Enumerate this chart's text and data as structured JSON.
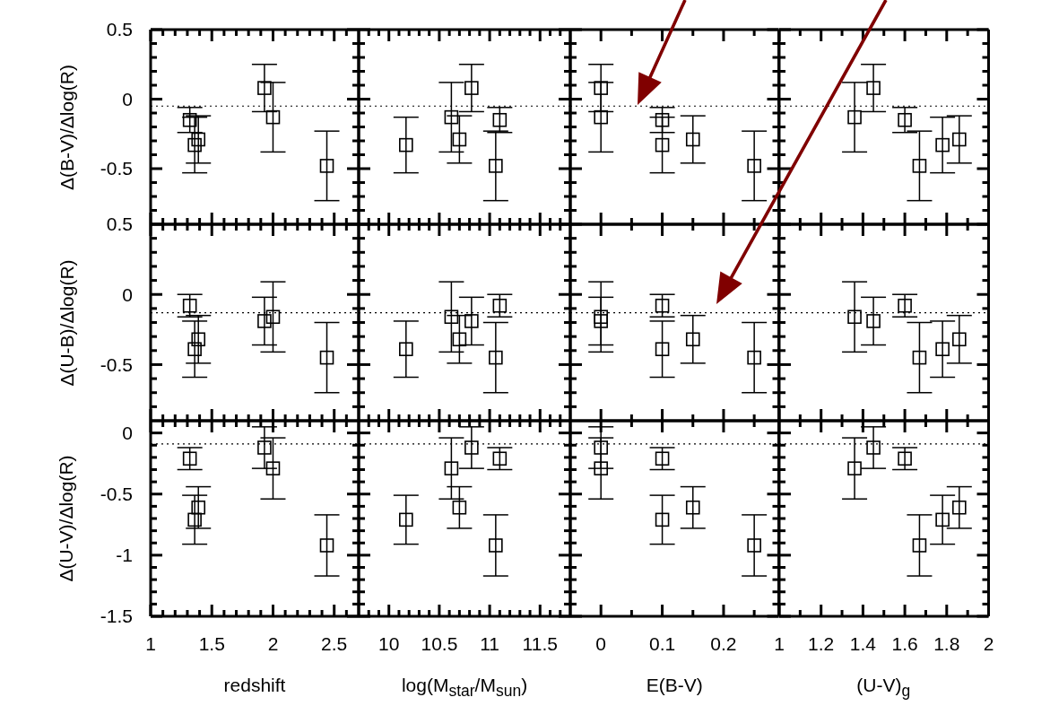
{
  "chart_data": [
    {
      "type": "scatter",
      "ylabel": "Δ(B-V)/Δlog(R)",
      "tick_labels": "y",
      "marker": "square",
      "color": "#000000",
      "x": [
        1.32,
        1.36,
        1.39,
        1.93,
        2.0,
        2.44
      ],
      "values": [
        -0.15,
        -0.33,
        -0.29,
        0.08,
        -0.13,
        -0.48
      ],
      "errors": [
        0.09,
        0.2,
        0.17,
        0.17,
        0.25,
        0.25
      ],
      "xlim": [
        1,
        2.7
      ],
      "ylim": [
        -0.9,
        0.5
      ],
      "xticks": [
        1,
        {
          "value": 1.1,
          "label": null
        },
        {
          "value": 1.2,
          "label": null
        },
        {
          "value": 1.3,
          "label": null
        },
        {
          "value": 1.4,
          "label": null
        },
        1.5,
        {
          "value": 1.6,
          "label": null
        },
        {
          "value": 1.7,
          "label": null
        },
        {
          "value": 1.8,
          "label": null
        },
        {
          "value": 1.9,
          "label": null
        },
        2,
        {
          "value": 2.1,
          "label": null
        },
        {
          "value": 2.2,
          "label": null
        },
        {
          "value": 2.3,
          "label": null
        },
        {
          "value": 2.4,
          "label": null
        },
        2.5,
        {
          "value": 2.6,
          "label": null
        }
      ],
      "yticks": [
        {
          "value": -0.8,
          "label": null
        },
        {
          "value": -0.7,
          "label": null
        },
        {
          "value": -0.6,
          "label": null
        },
        -0.5,
        {
          "value": -0.4,
          "label": null
        },
        {
          "value": -0.3,
          "label": null
        },
        {
          "value": -0.2,
          "label": null
        },
        {
          "value": -0.1,
          "label": null
        },
        0,
        {
          "value": 0.1,
          "label": null
        },
        {
          "value": 0.2,
          "label": null
        },
        {
          "value": 0.3,
          "label": null
        },
        {
          "value": 0.4,
          "label": null
        },
        0.5
      ],
      "ref_lines": [
        {
          "axis": "y",
          "value": -0.05,
          "line_style": "dotted",
          "color": "#000000"
        }
      ]
    },
    {
      "type": "scatter",
      "tick_labels": false,
      "marker": "square",
      "color": "#000000",
      "x": [
        11.1,
        10.17,
        10.7,
        10.82,
        10.62,
        11.06
      ],
      "values": [
        -0.15,
        -0.33,
        -0.29,
        0.08,
        -0.13,
        -0.48
      ],
      "errors": [
        0.09,
        0.2,
        0.17,
        0.17,
        0.25,
        0.25
      ],
      "xlim": [
        9.7,
        11.8
      ],
      "ylim": [
        -0.9,
        0.5
      ],
      "xticks": [
        {
          "value": 9.8,
          "label": null
        },
        {
          "value": 9.9,
          "label": null
        },
        10,
        {
          "value": 10.1,
          "label": null
        },
        {
          "value": 10.2,
          "label": null
        },
        {
          "value": 10.3,
          "label": null
        },
        {
          "value": 10.4,
          "label": null
        },
        10.5,
        {
          "value": 10.6,
          "label": null
        },
        {
          "value": 10.7,
          "label": null
        },
        {
          "value": 10.8,
          "label": null
        },
        {
          "value": 10.9,
          "label": null
        },
        11,
        {
          "value": 11.1,
          "label": null
        },
        {
          "value": 11.2,
          "label": null
        },
        {
          "value": 11.3,
          "label": null
        },
        {
          "value": 11.4,
          "label": null
        },
        11.5,
        {
          "value": 11.6,
          "label": null
        },
        {
          "value": 11.7,
          "label": null
        }
      ],
      "yticks": [
        {
          "value": -0.8,
          "label": null
        },
        {
          "value": -0.7,
          "label": null
        },
        {
          "value": -0.6,
          "label": null
        },
        -0.5,
        {
          "value": -0.4,
          "label": null
        },
        {
          "value": -0.3,
          "label": null
        },
        {
          "value": -0.2,
          "label": null
        },
        {
          "value": -0.1,
          "label": null
        },
        0,
        {
          "value": 0.1,
          "label": null
        },
        {
          "value": 0.2,
          "label": null
        },
        {
          "value": 0.3,
          "label": null
        },
        {
          "value": 0.4,
          "label": null
        },
        0.5
      ],
      "ref_lines": [
        {
          "axis": "y",
          "value": -0.05,
          "line_style": "dotted",
          "color": "#000000"
        }
      ]
    },
    {
      "type": "scatter",
      "tick_labels": false,
      "marker": "square",
      "color": "#000000",
      "x": [
        0.1,
        0.1,
        0.15,
        0,
        0,
        0.25
      ],
      "values": [
        -0.15,
        -0.33,
        -0.29,
        0.08,
        -0.13,
        -0.48
      ],
      "errors": [
        0.09,
        0.2,
        0.17,
        0.17,
        0.25,
        0.25
      ],
      "xlim": [
        -0.05,
        0.29
      ],
      "ylim": [
        -0.9,
        0.5
      ],
      "xticks": [
        0,
        {
          "value": 0.05,
          "label": null
        },
        0.1,
        {
          "value": 0.15,
          "label": null
        },
        0.2,
        {
          "value": 0.25,
          "label": null
        }
      ],
      "yticks": [
        {
          "value": -0.8,
          "label": null
        },
        {
          "value": -0.7,
          "label": null
        },
        {
          "value": -0.6,
          "label": null
        },
        -0.5,
        {
          "value": -0.4,
          "label": null
        },
        {
          "value": -0.3,
          "label": null
        },
        {
          "value": -0.2,
          "label": null
        },
        {
          "value": -0.1,
          "label": null
        },
        0,
        {
          "value": 0.1,
          "label": null
        },
        {
          "value": 0.2,
          "label": null
        },
        {
          "value": 0.3,
          "label": null
        },
        {
          "value": 0.4,
          "label": null
        },
        0.5
      ],
      "ref_lines": [
        {
          "axis": "y",
          "value": -0.05,
          "line_style": "dotted",
          "color": "#000000"
        }
      ]
    },
    {
      "type": "scatter",
      "tick_labels": false,
      "marker": "square",
      "color": "#000000",
      "x": [
        1.6,
        1.78,
        1.86,
        1.45,
        1.36,
        1.67
      ],
      "values": [
        -0.15,
        -0.33,
        -0.29,
        0.08,
        -0.13,
        -0.48
      ],
      "errors": [
        0.09,
        0.2,
        0.17,
        0.17,
        0.25,
        0.25
      ],
      "xlim": [
        1,
        2
      ],
      "ylim": [
        -0.9,
        0.5
      ],
      "xticks": [
        1,
        {
          "value": 1.1,
          "label": null
        },
        1.2,
        {
          "value": 1.3,
          "label": null
        },
        1.4,
        {
          "value": 1.5,
          "label": null
        },
        1.6,
        {
          "value": 1.7,
          "label": null
        },
        1.8,
        {
          "value": 1.9,
          "label": null
        },
        2
      ],
      "yticks": [
        {
          "value": -0.8,
          "label": null
        },
        {
          "value": -0.7,
          "label": null
        },
        {
          "value": -0.6,
          "label": null
        },
        -0.5,
        {
          "value": -0.4,
          "label": null
        },
        {
          "value": -0.3,
          "label": null
        },
        {
          "value": -0.2,
          "label": null
        },
        {
          "value": -0.1,
          "label": null
        },
        0,
        {
          "value": 0.1,
          "label": null
        },
        {
          "value": 0.2,
          "label": null
        },
        {
          "value": 0.3,
          "label": null
        },
        {
          "value": 0.4,
          "label": null
        },
        0.5
      ],
      "ref_lines": [
        {
          "axis": "y",
          "value": -0.05,
          "line_style": "dotted",
          "color": "#000000"
        }
      ]
    },
    {
      "type": "scatter",
      "ylabel": "Δ(U-B)/Δlog(R)",
      "tick_labels": "y",
      "marker": "square",
      "color": "#000000",
      "x": [
        1.32,
        1.36,
        1.39,
        1.93,
        2.0,
        2.44
      ],
      "values": [
        -0.08,
        -0.39,
        -0.32,
        -0.19,
        -0.16,
        -0.45
      ],
      "errors": [
        0.08,
        0.2,
        0.17,
        0.17,
        0.25,
        0.25
      ],
      "xlim": [
        1,
        2.7
      ],
      "ylim": [
        -0.9,
        0.5
      ],
      "xticks": [
        1,
        {
          "value": 1.1,
          "label": null
        },
        {
          "value": 1.2,
          "label": null
        },
        {
          "value": 1.3,
          "label": null
        },
        {
          "value": 1.4,
          "label": null
        },
        1.5,
        {
          "value": 1.6,
          "label": null
        },
        {
          "value": 1.7,
          "label": null
        },
        {
          "value": 1.8,
          "label": null
        },
        {
          "value": 1.9,
          "label": null
        },
        2,
        {
          "value": 2.1,
          "label": null
        },
        {
          "value": 2.2,
          "label": null
        },
        {
          "value": 2.3,
          "label": null
        },
        {
          "value": 2.4,
          "label": null
        },
        2.5,
        {
          "value": 2.6,
          "label": null
        }
      ],
      "yticks": [
        {
          "value": -0.8,
          "label": null
        },
        {
          "value": -0.7,
          "label": null
        },
        {
          "value": -0.6,
          "label": null
        },
        -0.5,
        {
          "value": -0.4,
          "label": null
        },
        {
          "value": -0.3,
          "label": null
        },
        {
          "value": -0.2,
          "label": null
        },
        {
          "value": -0.1,
          "label": null
        },
        0,
        {
          "value": 0.1,
          "label": null
        },
        {
          "value": 0.2,
          "label": null
        },
        {
          "value": 0.3,
          "label": null
        },
        {
          "value": 0.4,
          "label": null
        },
        0.5
      ],
      "ref_lines": [
        {
          "axis": "y",
          "value": -0.13,
          "line_style": "dotted",
          "color": "#000000"
        }
      ]
    },
    {
      "type": "scatter",
      "tick_labels": false,
      "marker": "square",
      "color": "#000000",
      "x": [
        11.1,
        10.17,
        10.7,
        10.82,
        10.62,
        11.06
      ],
      "values": [
        -0.08,
        -0.39,
        -0.32,
        -0.19,
        -0.16,
        -0.45
      ],
      "errors": [
        0.08,
        0.2,
        0.17,
        0.17,
        0.25,
        0.25
      ],
      "xlim": [
        9.7,
        11.8
      ],
      "ylim": [
        -0.9,
        0.5
      ],
      "xticks": [
        {
          "value": 9.8,
          "label": null
        },
        {
          "value": 9.9,
          "label": null
        },
        10,
        {
          "value": 10.1,
          "label": null
        },
        {
          "value": 10.2,
          "label": null
        },
        {
          "value": 10.3,
          "label": null
        },
        {
          "value": 10.4,
          "label": null
        },
        10.5,
        {
          "value": 10.6,
          "label": null
        },
        {
          "value": 10.7,
          "label": null
        },
        {
          "value": 10.8,
          "label": null
        },
        {
          "value": 10.9,
          "label": null
        },
        11,
        {
          "value": 11.1,
          "label": null
        },
        {
          "value": 11.2,
          "label": null
        },
        {
          "value": 11.3,
          "label": null
        },
        {
          "value": 11.4,
          "label": null
        },
        11.5,
        {
          "value": 11.6,
          "label": null
        },
        {
          "value": 11.7,
          "label": null
        }
      ],
      "yticks": [
        {
          "value": -0.8,
          "label": null
        },
        {
          "value": -0.7,
          "label": null
        },
        {
          "value": -0.6,
          "label": null
        },
        -0.5,
        {
          "value": -0.4,
          "label": null
        },
        {
          "value": -0.3,
          "label": null
        },
        {
          "value": -0.2,
          "label": null
        },
        {
          "value": -0.1,
          "label": null
        },
        0,
        {
          "value": 0.1,
          "label": null
        },
        {
          "value": 0.2,
          "label": null
        },
        {
          "value": 0.3,
          "label": null
        },
        {
          "value": 0.4,
          "label": null
        },
        0.5
      ],
      "ref_lines": [
        {
          "axis": "y",
          "value": -0.13,
          "line_style": "dotted",
          "color": "#000000"
        }
      ]
    },
    {
      "type": "scatter",
      "tick_labels": false,
      "marker": "square",
      "color": "#000000",
      "x": [
        0.1,
        0.1,
        0.15,
        0,
        0,
        0.25
      ],
      "values": [
        -0.08,
        -0.39,
        -0.32,
        -0.19,
        -0.16,
        -0.45
      ],
      "errors": [
        0.08,
        0.2,
        0.17,
        0.17,
        0.25,
        0.25
      ],
      "xlim": [
        -0.05,
        0.29
      ],
      "ylim": [
        -0.9,
        0.5
      ],
      "xticks": [
        0,
        {
          "value": 0.05,
          "label": null
        },
        0.1,
        {
          "value": 0.15,
          "label": null
        },
        0.2,
        {
          "value": 0.25,
          "label": null
        }
      ],
      "yticks": [
        {
          "value": -0.8,
          "label": null
        },
        {
          "value": -0.7,
          "label": null
        },
        {
          "value": -0.6,
          "label": null
        },
        -0.5,
        {
          "value": -0.4,
          "label": null
        },
        {
          "value": -0.3,
          "label": null
        },
        {
          "value": -0.2,
          "label": null
        },
        {
          "value": -0.1,
          "label": null
        },
        0,
        {
          "value": 0.1,
          "label": null
        },
        {
          "value": 0.2,
          "label": null
        },
        {
          "value": 0.3,
          "label": null
        },
        {
          "value": 0.4,
          "label": null
        },
        0.5
      ],
      "ref_lines": [
        {
          "axis": "y",
          "value": -0.13,
          "line_style": "dotted",
          "color": "#000000"
        }
      ]
    },
    {
      "type": "scatter",
      "tick_labels": false,
      "marker": "square",
      "color": "#000000",
      "x": [
        1.6,
        1.78,
        1.86,
        1.45,
        1.36,
        1.67
      ],
      "values": [
        -0.08,
        -0.39,
        -0.32,
        -0.19,
        -0.16,
        -0.45
      ],
      "errors": [
        0.08,
        0.2,
        0.17,
        0.17,
        0.25,
        0.25
      ],
      "xlim": [
        1,
        2
      ],
      "ylim": [
        -0.9,
        0.5
      ],
      "xticks": [
        1,
        {
          "value": 1.1,
          "label": null
        },
        1.2,
        {
          "value": 1.3,
          "label": null
        },
        1.4,
        {
          "value": 1.5,
          "label": null
        },
        1.6,
        {
          "value": 1.7,
          "label": null
        },
        1.8,
        {
          "value": 1.9,
          "label": null
        },
        2
      ],
      "yticks": [
        {
          "value": -0.8,
          "label": null
        },
        {
          "value": -0.7,
          "label": null
        },
        {
          "value": -0.6,
          "label": null
        },
        -0.5,
        {
          "value": -0.4,
          "label": null
        },
        {
          "value": -0.3,
          "label": null
        },
        {
          "value": -0.2,
          "label": null
        },
        {
          "value": -0.1,
          "label": null
        },
        0,
        {
          "value": 0.1,
          "label": null
        },
        {
          "value": 0.2,
          "label": null
        },
        {
          "value": 0.3,
          "label": null
        },
        {
          "value": 0.4,
          "label": null
        },
        0.5
      ],
      "ref_lines": [
        {
          "axis": "y",
          "value": -0.13,
          "line_style": "dotted",
          "color": "#000000"
        }
      ]
    },
    {
      "type": "scatter",
      "ylabel": "Δ(U-V)/Δlog(R)",
      "xlabel": "redshift",
      "marker": "square",
      "color": "#000000",
      "x": [
        1.32,
        1.36,
        1.39,
        1.93,
        2.0,
        2.44
      ],
      "values": [
        -0.21,
        -0.71,
        -0.61,
        -0.12,
        -0.29,
        -0.92
      ],
      "errors": [
        0.09,
        0.2,
        0.17,
        0.17,
        0.25,
        0.25
      ],
      "xlim": [
        1,
        2.7
      ],
      "ylim": [
        -1.5,
        0.1
      ],
      "xticks": [
        1,
        {
          "value": 1.1,
          "label": null
        },
        {
          "value": 1.2,
          "label": null
        },
        {
          "value": 1.3,
          "label": null
        },
        {
          "value": 1.4,
          "label": null
        },
        1.5,
        {
          "value": 1.6,
          "label": null
        },
        {
          "value": 1.7,
          "label": null
        },
        {
          "value": 1.8,
          "label": null
        },
        {
          "value": 1.9,
          "label": null
        },
        2,
        {
          "value": 2.1,
          "label": null
        },
        {
          "value": 2.2,
          "label": null
        },
        {
          "value": 2.3,
          "label": null
        },
        {
          "value": 2.4,
          "label": null
        },
        2.5,
        {
          "value": 2.6,
          "label": null
        }
      ],
      "yticks": [
        -1.5,
        {
          "value": -1.4,
          "label": null
        },
        {
          "value": -1.3,
          "label": null
        },
        {
          "value": -1.2,
          "label": null
        },
        {
          "value": -1.1,
          "label": null
        },
        -1,
        {
          "value": -0.9,
          "label": null
        },
        {
          "value": -0.8,
          "label": null
        },
        {
          "value": -0.7,
          "label": null
        },
        {
          "value": -0.6,
          "label": null
        },
        -0.5,
        {
          "value": -0.4,
          "label": null
        },
        {
          "value": -0.3,
          "label": null
        },
        {
          "value": -0.2,
          "label": null
        },
        {
          "value": -0.1,
          "label": null
        },
        0
      ],
      "ref_lines": [
        {
          "axis": "y",
          "value": -0.09,
          "line_style": "dotted",
          "color": "#000000"
        }
      ]
    },
    {
      "type": "scatter",
      "xlabel": "log(M$_{star}$/M$_{sun}$)",
      "tick_labels": "x",
      "marker": "square",
      "color": "#000000",
      "x": [
        11.1,
        10.17,
        10.7,
        10.82,
        10.62,
        11.06
      ],
      "values": [
        -0.21,
        -0.71,
        -0.61,
        -0.12,
        -0.29,
        -0.92
      ],
      "errors": [
        0.09,
        0.2,
        0.17,
        0.17,
        0.25,
        0.25
      ],
      "xlim": [
        9.7,
        11.8
      ],
      "ylim": [
        -1.5,
        0.1
      ],
      "xticks": [
        {
          "value": 9.8,
          "label": null
        },
        {
          "value": 9.9,
          "label": null
        },
        10,
        {
          "value": 10.1,
          "label": null
        },
        {
          "value": 10.2,
          "label": null
        },
        {
          "value": 10.3,
          "label": null
        },
        {
          "value": 10.4,
          "label": null
        },
        10.5,
        {
          "value": 10.6,
          "label": null
        },
        {
          "value": 10.7,
          "label": null
        },
        {
          "value": 10.8,
          "label": null
        },
        {
          "value": 10.9,
          "label": null
        },
        11,
        {
          "value": 11.1,
          "label": null
        },
        {
          "value": 11.2,
          "label": null
        },
        {
          "value": 11.3,
          "label": null
        },
        {
          "value": 11.4,
          "label": null
        },
        11.5,
        {
          "value": 11.6,
          "label": null
        },
        {
          "value": 11.7,
          "label": null
        }
      ],
      "yticks": [
        -1.5,
        {
          "value": -1.4,
          "label": null
        },
        {
          "value": -1.3,
          "label": null
        },
        {
          "value": -1.2,
          "label": null
        },
        {
          "value": -1.1,
          "label": null
        },
        -1,
        {
          "value": -0.9,
          "label": null
        },
        {
          "value": -0.8,
          "label": null
        },
        {
          "value": -0.7,
          "label": null
        },
        {
          "value": -0.6,
          "label": null
        },
        -0.5,
        {
          "value": -0.4,
          "label": null
        },
        {
          "value": -0.3,
          "label": null
        },
        {
          "value": -0.2,
          "label": null
        },
        {
          "value": -0.1,
          "label": null
        },
        0
      ],
      "ref_lines": [
        {
          "axis": "y",
          "value": -0.09,
          "line_style": "dotted",
          "color": "#000000"
        }
      ]
    },
    {
      "type": "scatter",
      "xlabel": "E(B-V)",
      "tick_labels": "x",
      "marker": "square",
      "color": "#000000",
      "x": [
        0.1,
        0.1,
        0.15,
        0,
        0,
        0.25
      ],
      "values": [
        -0.21,
        -0.71,
        -0.61,
        -0.12,
        -0.29,
        -0.92
      ],
      "errors": [
        0.09,
        0.2,
        0.17,
        0.17,
        0.25,
        0.25
      ],
      "xlim": [
        -0.05,
        0.29
      ],
      "ylim": [
        -1.5,
        0.1
      ],
      "xticks": [
        0,
        {
          "value": 0.05,
          "label": null
        },
        0.1,
        {
          "value": 0.15,
          "label": null
        },
        0.2,
        {
          "value": 0.25,
          "label": null
        }
      ],
      "yticks": [
        -1.5,
        {
          "value": -1.4,
          "label": null
        },
        {
          "value": -1.3,
          "label": null
        },
        {
          "value": -1.2,
          "label": null
        },
        {
          "value": -1.1,
          "label": null
        },
        -1,
        {
          "value": -0.9,
          "label": null
        },
        {
          "value": -0.8,
          "label": null
        },
        {
          "value": -0.7,
          "label": null
        },
        {
          "value": -0.6,
          "label": null
        },
        -0.5,
        {
          "value": -0.4,
          "label": null
        },
        {
          "value": -0.3,
          "label": null
        },
        {
          "value": -0.2,
          "label": null
        },
        {
          "value": -0.1,
          "label": null
        },
        0
      ],
      "ref_lines": [
        {
          "axis": "y",
          "value": -0.09,
          "line_style": "dotted",
          "color": "#000000"
        }
      ]
    },
    {
      "type": "scatter",
      "xlabel": "(U-V)$_{g}$",
      "tick_labels": "x",
      "marker": "square",
      "color": "#000000",
      "x": [
        1.6,
        1.78,
        1.86,
        1.45,
        1.36,
        1.67
      ],
      "values": [
        -0.21,
        -0.71,
        -0.61,
        -0.12,
        -0.29,
        -0.92
      ],
      "errors": [
        0.09,
        0.2,
        0.17,
        0.17,
        0.25,
        0.25
      ],
      "xlim": [
        1,
        2
      ],
      "ylim": [
        -1.5,
        0.1
      ],
      "xticks": [
        1,
        {
          "value": 1.1,
          "label": null
        },
        1.2,
        {
          "value": 1.3,
          "label": null
        },
        1.4,
        {
          "value": 1.5,
          "label": null
        },
        1.6,
        {
          "value": 1.7,
          "label": null
        },
        1.8,
        {
          "value": 1.9,
          "label": null
        },
        2
      ],
      "yticks": [
        -1.5,
        {
          "value": -1.4,
          "label": null
        },
        {
          "value": -1.3,
          "label": null
        },
        {
          "value": -1.2,
          "label": null
        },
        {
          "value": -1.1,
          "label": null
        },
        -1,
        {
          "value": -0.9,
          "label": null
        },
        {
          "value": -0.8,
          "label": null
        },
        {
          "value": -0.7,
          "label": null
        },
        {
          "value": -0.6,
          "label": null
        },
        -0.5,
        {
          "value": -0.4,
          "label": null
        },
        {
          "value": -0.3,
          "label": null
        },
        {
          "value": -0.2,
          "label": null
        },
        {
          "value": -0.1,
          "label": null
        },
        0
      ],
      "ref_lines": [
        {
          "axis": "y",
          "value": -0.09,
          "line_style": "dotted",
          "color": "#000000"
        }
      ]
    }
  ]
}
